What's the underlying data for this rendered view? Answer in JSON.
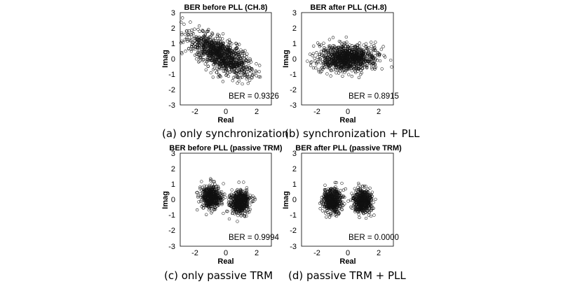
{
  "chart_data": [
    {
      "type": "scatter",
      "title": "BER before PLL (CH.8)",
      "xlabel": "Real",
      "ylabel": "Imag",
      "xlim": [
        -3,
        3
      ],
      "ylim": [
        -3,
        3
      ],
      "xticks": [
        "-2",
        "0",
        "2"
      ],
      "yticks": [
        "3",
        "2",
        "1",
        "0",
        "-1",
        "-2",
        "-3"
      ],
      "annotation": "BER = 0.9326",
      "caption": "(a) only synchronization",
      "point_count": 1000,
      "clusters": [
        {
          "distribution": "correlated-ellipse",
          "center": [
            -0.3,
            0.25
          ],
          "major_axis_slope": -0.62,
          "major_sd": 1.15,
          "minor_sd": 0.45
        }
      ]
    },
    {
      "type": "scatter",
      "title": "BER after PLL (CH.8)",
      "xlabel": "Real",
      "ylabel": "Imag",
      "xlim": [
        -3,
        3
      ],
      "ylim": [
        -3,
        3
      ],
      "xticks": [
        "-2",
        "0",
        "2"
      ],
      "yticks": [
        "3",
        "2",
        "1",
        "0",
        "-1",
        "-2",
        "-3"
      ],
      "annotation": "BER = 0.8915",
      "caption": "(b) synchronization + PLL",
      "point_count": 1000,
      "clusters": [
        {
          "distribution": "ellipse",
          "center": [
            0.0,
            0.05
          ],
          "sd": [
            0.9,
            0.42
          ]
        }
      ]
    },
    {
      "type": "scatter",
      "title": "BER before PLL (passive TRM)",
      "xlabel": "Real",
      "ylabel": "Imag",
      "xlim": [
        -3,
        3
      ],
      "ylim": [
        -3,
        3
      ],
      "xticks": [
        "-2",
        "0",
        "2"
      ],
      "yticks": [
        "3",
        "2",
        "1",
        "0",
        "-1",
        "-2",
        "-3"
      ],
      "annotation": "BER = 0.9994",
      "caption": "(c) only passive TRM",
      "point_count": 1000,
      "clusters": [
        {
          "distribution": "blob",
          "center": [
            -0.95,
            0.15
          ],
          "sd": [
            0.33,
            0.38
          ]
        },
        {
          "distribution": "blob",
          "center": [
            0.95,
            -0.15
          ],
          "sd": [
            0.33,
            0.38
          ]
        }
      ]
    },
    {
      "type": "scatter",
      "title": "BER after PLL (passive TRM)",
      "xlabel": "Real",
      "ylabel": "Imag",
      "xlim": [
        -3,
        3
      ],
      "ylim": [
        -3,
        3
      ],
      "xticks": [
        "-2",
        "0",
        "2"
      ],
      "yticks": [
        "3",
        "2",
        "1",
        "0",
        "-1",
        "-2",
        "-3"
      ],
      "annotation": "BER = 0.0000",
      "caption": "(d) passive TRM + PLL",
      "point_count": 1000,
      "clusters": [
        {
          "distribution": "blob",
          "center": [
            -1.0,
            -0.05
          ],
          "sd": [
            0.3,
            0.4
          ]
        },
        {
          "distribution": "blob",
          "center": [
            1.0,
            -0.05
          ],
          "sd": [
            0.3,
            0.4
          ]
        }
      ]
    }
  ]
}
